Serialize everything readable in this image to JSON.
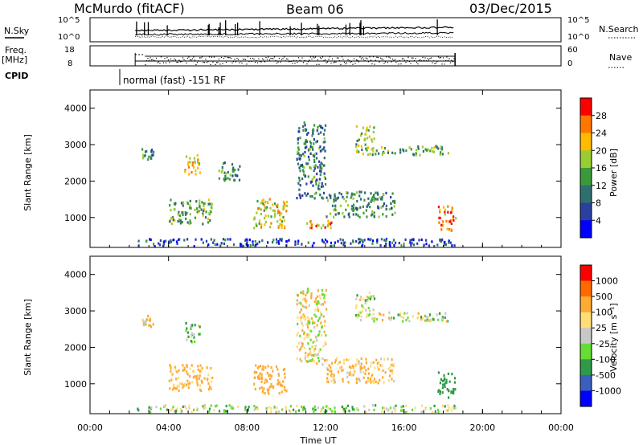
{
  "header": {
    "station": "McMurdo (fitACF)",
    "beam": "Beam 06",
    "date": "03/Dec/2015"
  },
  "top_panels": {
    "nsky": {
      "label": "N.Sky",
      "left_ticks": [
        "10^5",
        "10^0"
      ],
      "right_ticks": [
        "10^5",
        "10^0"
      ],
      "right_label": "N.Search"
    },
    "freq": {
      "label_line1": "Freq.",
      "label_line2": "[MHz]",
      "left_ticks": [
        "18",
        "8"
      ],
      "right_ticks": [
        "60",
        "0"
      ],
      "right_label": "Nave"
    },
    "cpid": {
      "label": "CPID",
      "text": "normal (fast) -151 RF"
    }
  },
  "power_colorbar": {
    "label": "Power [dB]",
    "ticks": [
      "28",
      "24",
      "20",
      "16",
      "12",
      "8",
      "4"
    ],
    "colors": [
      "#ff0000",
      "#ff7700",
      "#ffbb00",
      "#9acd32",
      "#3a9a3a",
      "#2f6f6f",
      "#2a3f9f",
      "#0000ff"
    ]
  },
  "velocity_colorbar": {
    "label": "Velocity [m s⁻¹]",
    "ticks": [
      "1000",
      "500",
      "100",
      "25",
      "-25",
      "-100",
      "-500",
      "-1000"
    ],
    "colors": [
      "#ff0000",
      "#ff6a00",
      "#ffaa33",
      "#ffdd77",
      "#c8c8c8",
      "#66dd33",
      "#2f9a4a",
      "#3a5fbf",
      "#0000ff"
    ]
  },
  "axes": {
    "ylabel": "Slant Range [km]",
    "xlabel": "Time UT",
    "yticks": [
      "4000",
      "3000",
      "2000",
      "1000"
    ],
    "xticks": [
      "00:00",
      "04:00",
      "08:00",
      "12:00",
      "16:00",
      "20:00",
      "00:00"
    ]
  },
  "chart_data": [
    {
      "type": "heatmap",
      "title": "",
      "quantity": "Power [dB]",
      "xlabel": "",
      "ylabel": "Slant Range [km]",
      "xlim": [
        0,
        24
      ],
      "ylim": [
        180,
        4500
      ],
      "colorbar_range": [
        0,
        30
      ],
      "data_time_range_hours": [
        2.3,
        18.6
      ],
      "clusters": [
        {
          "t": [
            2.5,
            3.2
          ],
          "range": [
            2550,
            2900
          ],
          "value": 12
        },
        {
          "t": [
            4.8,
            5.6
          ],
          "range": [
            2100,
            2700
          ],
          "value": 20
        },
        {
          "t": [
            6.4,
            7.6
          ],
          "range": [
            2000,
            2500
          ],
          "value": 10
        },
        {
          "t": [
            4.0,
            6.2
          ],
          "range": [
            800,
            1500
          ],
          "value": 14
        },
        {
          "t": [
            8.3,
            10.0
          ],
          "range": [
            700,
            1500
          ],
          "value": 18
        },
        {
          "t": [
            10.5,
            12.0
          ],
          "range": [
            1500,
            3600
          ],
          "value": 10
        },
        {
          "t": [
            11.0,
            12.3
          ],
          "range": [
            700,
            900
          ],
          "value": 22
        },
        {
          "t": [
            12.0,
            15.5
          ],
          "range": [
            1000,
            1700
          ],
          "value": 12
        },
        {
          "t": [
            13.5,
            14.5
          ],
          "range": [
            2700,
            3500
          ],
          "value": 16
        },
        {
          "t": [
            14.5,
            18.3
          ],
          "range": [
            2700,
            2950
          ],
          "value": 14
        },
        {
          "t": [
            17.7,
            18.6
          ],
          "range": [
            600,
            1300
          ],
          "value": 24
        },
        {
          "t": [
            2.3,
            18.6
          ],
          "range": [
            200,
            400
          ],
          "value": 6
        }
      ]
    },
    {
      "type": "heatmap",
      "title": "",
      "quantity": "Velocity [m s-1]",
      "xlabel": "Time UT",
      "ylabel": "Slant Range [km]",
      "xlim": [
        0,
        24
      ],
      "ylim": [
        180,
        4500
      ],
      "colorbar_range": [
        -1000,
        1000
      ],
      "data_time_range_hours": [
        2.3,
        18.6
      ],
      "clusters": [
        {
          "t": [
            2.5,
            3.2
          ],
          "range": [
            2550,
            2900
          ],
          "value": 100
        },
        {
          "t": [
            4.8,
            5.6
          ],
          "range": [
            2100,
            2700
          ],
          "value": -100
        },
        {
          "t": [
            4.0,
            6.2
          ],
          "range": [
            800,
            1500
          ],
          "value": 200
        },
        {
          "t": [
            8.3,
            10.0
          ],
          "range": [
            700,
            1500
          ],
          "value": 300
        },
        {
          "t": [
            10.5,
            12.0
          ],
          "range": [
            1500,
            3600
          ],
          "value": 50
        },
        {
          "t": [
            12.0,
            15.5
          ],
          "range": [
            1000,
            1700
          ],
          "value": 150
        },
        {
          "t": [
            13.5,
            14.5
          ],
          "range": [
            2700,
            3500
          ],
          "value": 0
        },
        {
          "t": [
            14.5,
            18.3
          ],
          "range": [
            2700,
            2950
          ],
          "value": 0
        },
        {
          "t": [
            17.7,
            18.6
          ],
          "range": [
            600,
            1300
          ],
          "value": -300
        },
        {
          "t": [
            2.3,
            18.6
          ],
          "range": [
            200,
            400
          ],
          "value": -50
        }
      ]
    }
  ]
}
